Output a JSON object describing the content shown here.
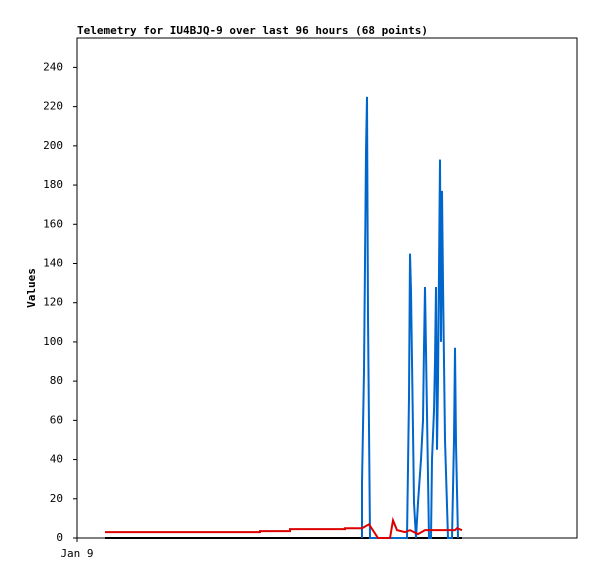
{
  "chart_data": {
    "type": "line",
    "title": "Telemetry for IU4BJQ-9 over last 96 hours (68 points)",
    "y_label": "Values",
    "xlim": [
      0,
      100
    ],
    "xticks": [
      {
        "value": 0,
        "label": "Jan 9"
      }
    ],
    "ylim": [
      0,
      255
    ],
    "yticks": [
      0,
      20,
      40,
      60,
      80,
      100,
      120,
      140,
      160,
      180,
      200,
      220,
      240
    ],
    "series": [
      {
        "color": "#000000",
        "x": [
          5.6,
          77
        ],
        "values": [
          0,
          0
        ]
      },
      {
        "color": "#0066cc",
        "x": [
          57,
          57,
          57.4,
          57.6,
          57.8,
          58,
          58.2,
          58.6,
          66,
          66.4,
          66.6,
          66.8,
          67,
          67.2,
          67.4,
          67.8,
          68.2,
          68.8,
          69.2,
          69.4,
          69.6,
          70,
          70.4,
          70.8,
          71,
          71.4,
          71.6,
          71.8,
          72,
          72.2,
          72.6,
          72.8,
          73,
          73.2,
          73.6,
          74.2,
          75,
          75.4,
          75.6,
          75.8,
          76.2
        ],
        "values": [
          0,
          28,
          85,
          140,
          197,
          225,
          113,
          0,
          0,
          72,
          145,
          126,
          90,
          55,
          18,
          0,
          18,
          40,
          60,
          97,
          128,
          63,
          0,
          0,
          40,
          65,
          90,
          128,
          45,
          80,
          193,
          100,
          177,
          130,
          50,
          0,
          0,
          50,
          97,
          48,
          0
        ]
      },
      {
        "color": "#dd0000",
        "x": [
          5.6,
          36.6,
          36.6,
          42.6,
          42.6,
          53.6,
          53.6,
          57,
          58.4,
          60.2,
          62.6,
          63.2,
          64,
          65.6,
          66.6,
          68.2,
          69.6,
          75.6,
          76,
          77
        ],
        "values": [
          3,
          3,
          3.5,
          3.5,
          4.5,
          4.5,
          5,
          5,
          7,
          0,
          0,
          9,
          4,
          3,
          4,
          2,
          4,
          4,
          5,
          4
        ]
      }
    ]
  }
}
